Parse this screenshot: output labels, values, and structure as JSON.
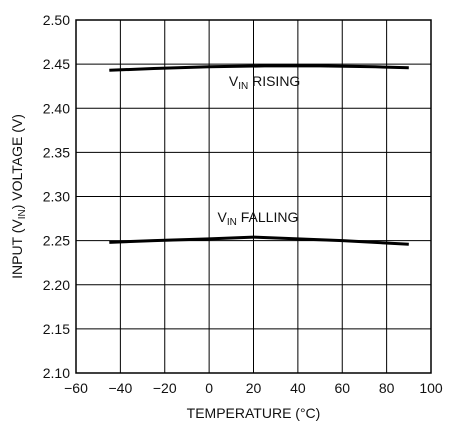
{
  "chart_data": {
    "type": "line",
    "title": "",
    "xlabel": "TEMPERATURE (°C)",
    "ylabel": {
      "main": "INPUT (V",
      "sub": "IN",
      "rest": ") VOLTAGE (V)"
    },
    "xlim": [
      -60,
      100
    ],
    "ylim": [
      2.1,
      2.5
    ],
    "x_ticks": [
      "−60",
      "−40",
      "−20",
      "0",
      "20",
      "40",
      "60",
      "80",
      "100"
    ],
    "y_ticks": [
      "2.50",
      "2.45",
      "2.40",
      "2.35",
      "2.30",
      "2.25",
      "2.20",
      "2.15",
      "2.10"
    ],
    "grid": true,
    "series": [
      {
        "name": "VIN RISING",
        "label_main": "V",
        "label_sub": "IN",
        "label_rest": " RISING",
        "x": [
          -45,
          -25,
          0,
          25,
          50,
          75,
          90
        ],
        "y": [
          2.443,
          2.445,
          2.447,
          2.448,
          2.448,
          2.447,
          2.446
        ]
      },
      {
        "name": "VIN FALLING",
        "label_main": "V",
        "label_sub": "IN",
        "label_rest": " FALLING",
        "x": [
          -45,
          -25,
          0,
          20,
          40,
          60,
          90
        ],
        "y": [
          2.248,
          2.25,
          2.252,
          2.254,
          2.252,
          2.25,
          2.246
        ]
      }
    ],
    "line_color": "#000000"
  }
}
